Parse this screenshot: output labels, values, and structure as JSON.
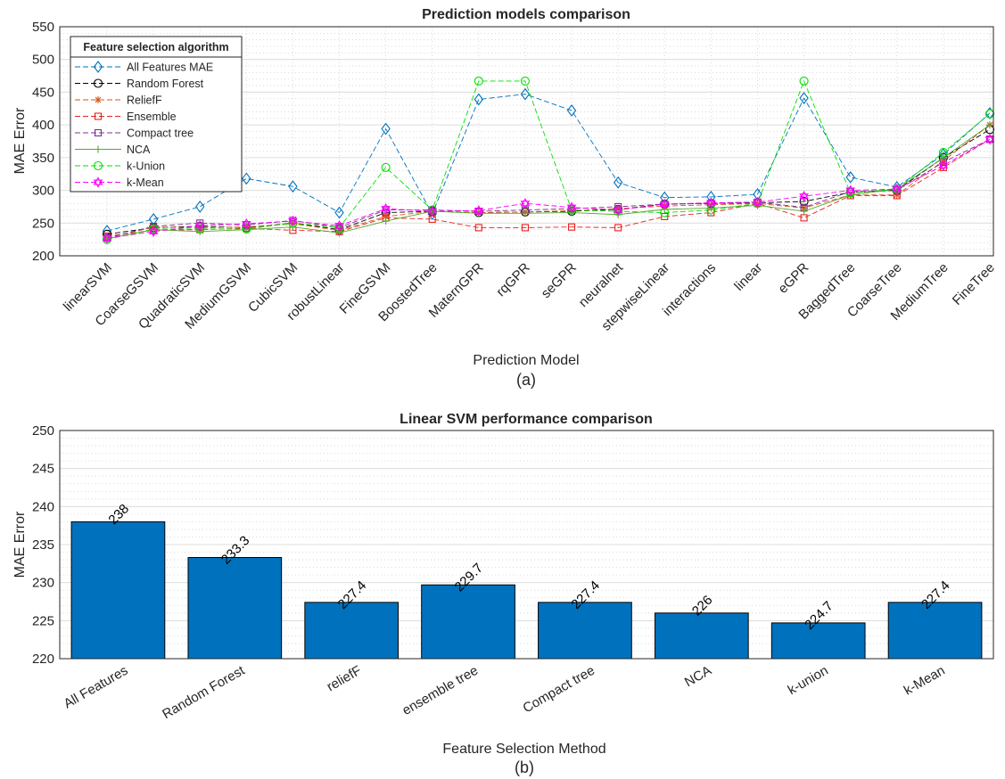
{
  "chart_data": [
    {
      "type": "line",
      "title": "Prediction models comparison",
      "xlabel": "Prediction Model",
      "ylabel": "MAE Error",
      "subcaption": "(a)",
      "ylim": [
        200,
        550
      ],
      "yticks": [
        200,
        250,
        300,
        350,
        400,
        450,
        500,
        550
      ],
      "grid": true,
      "legend_title": "Feature selection algorithm",
      "legend_position": "top-left",
      "categories": [
        "linearSVM",
        "CoarseGSVM",
        "QuadraticSVM",
        "MediumGSVM",
        "CubicSVM",
        "robustLinear",
        "FineGSVM",
        "BoostedTree",
        "MaternGPR",
        "rqGPR",
        "seGPR",
        "neuralnet",
        "stepwiseLinear",
        "interactions",
        "linear",
        "eGPR",
        "BaggedTree",
        "CoarseTree",
        "MediumTree",
        "FineTree"
      ],
      "series": [
        {
          "name": "All Features MAE",
          "color": "#0072BD",
          "marker": "diamond",
          "values": [
            238,
            256,
            275,
            318,
            306,
            266,
            394,
            264,
            439,
            447,
            422,
            312,
            289,
            290,
            294,
            441,
            320,
            305,
            355,
            418
          ]
        },
        {
          "name": "Random Forest",
          "color": "#000000",
          "marker": "circle",
          "values": [
            233,
            243,
            245,
            243,
            250,
            240,
            266,
            268,
            266,
            267,
            268,
            271,
            279,
            280,
            281,
            283,
            297,
            300,
            350,
            393
          ]
        },
        {
          "name": "ReliefF",
          "color": "#D95319",
          "marker": "asterisk",
          "values": [
            227,
            244,
            243,
            244,
            249,
            239,
            260,
            268,
            266,
            267,
            269,
            272,
            276,
            278,
            280,
            273,
            293,
            293,
            345,
            400
          ]
        },
        {
          "name": "Ensemble",
          "color": "#E8201F",
          "marker": "square",
          "values": [
            230,
            239,
            240,
            242,
            239,
            237,
            258,
            256,
            243,
            243,
            244,
            243,
            260,
            266,
            280,
            258,
            292,
            292,
            335,
            378
          ]
        },
        {
          "name": "Compact tree",
          "color": "#7E2F8E",
          "marker": "square",
          "values": [
            227,
            245,
            250,
            247,
            254,
            243,
            270,
            270,
            268,
            270,
            272,
            275,
            279,
            280,
            282,
            274,
            298,
            300,
            343,
            378
          ]
        },
        {
          "name": "NCA",
          "color": "#55A630",
          "marker": "plus",
          "values": [
            226,
            240,
            237,
            240,
            244,
            235,
            253,
            268,
            265,
            265,
            266,
            263,
            271,
            273,
            277,
            268,
            293,
            302,
            350,
            400
          ]
        },
        {
          "name": "k-Union",
          "color": "#00E000",
          "marker": "circle",
          "values": [
            225,
            241,
            241,
            241,
            250,
            243,
            335,
            270,
            467,
            467,
            270,
            268,
            266,
            270,
            280,
            467,
            296,
            302,
            358,
            417
          ]
        },
        {
          "name": "k-Mean",
          "color": "#FF00FF",
          "marker": "hexagram",
          "values": [
            227,
            237,
            246,
            249,
            253,
            246,
            272,
            268,
            269,
            280,
            274,
            270,
            279,
            281,
            282,
            291,
            300,
            302,
            338,
            378
          ]
        }
      ]
    },
    {
      "type": "bar",
      "title": "Linear SVM performance comparison",
      "xlabel": "Feature Selection Method",
      "ylabel": "MAE Error",
      "subcaption": "(b)",
      "ylim": [
        220,
        250
      ],
      "yticks": [
        220,
        225,
        230,
        235,
        240,
        245,
        250
      ],
      "grid": true,
      "bar_color": "#0072BD",
      "categories": [
        "All Features",
        "Random Forest",
        "reliefF",
        "ensemble tree",
        "Compact tree",
        "NCA",
        "k-union",
        "k-Mean"
      ],
      "values": [
        238,
        233.3,
        227.4,
        229.7,
        227.4,
        226,
        224.7,
        227.4
      ],
      "value_labels": [
        "238",
        "233.3",
        "227.4",
        "229.7",
        "227.4",
        "226",
        "224.7",
        "227.4"
      ]
    }
  ]
}
